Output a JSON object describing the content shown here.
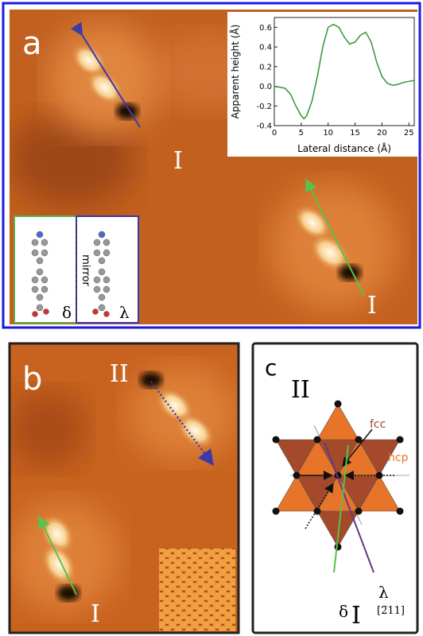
{
  "panels": {
    "a": {
      "label": "a",
      "molecule_labels": [
        "I",
        "I"
      ],
      "mirror_inset": {
        "text": "mirror",
        "left": "δ",
        "right": "λ"
      }
    },
    "b": {
      "label": "b",
      "molecule_labels": [
        "II",
        "I"
      ]
    },
    "c": {
      "label": "c",
      "site_labels": [
        "fcc",
        "hcp"
      ],
      "molecule_labels": [
        "II",
        "I"
      ],
      "chirality": [
        "λ",
        "δ"
      ],
      "direction": "[2̅11]"
    }
  },
  "chart_data": {
    "type": "line",
    "x_label": "Lateral distance (Å)",
    "y_label": "Apparent height (Å)",
    "x": [
      0,
      2,
      3,
      4,
      5,
      5.5,
      6,
      7,
      8,
      9,
      10,
      11,
      12,
      13,
      14,
      15,
      16,
      17,
      18,
      19,
      20,
      21,
      22,
      23,
      24,
      25,
      26
    ],
    "series": [
      {
        "color": "#3f9a3f",
        "values": [
          0,
          -0.02,
          -0.08,
          -0.2,
          -0.3,
          -0.33,
          -0.3,
          -0.15,
          0.1,
          0.4,
          0.6,
          0.63,
          0.6,
          0.5,
          0.43,
          0.45,
          0.52,
          0.55,
          0.45,
          0.25,
          0.1,
          0.03,
          0.01,
          0.02,
          0.04,
          0.05,
          0.06
        ]
      }
    ],
    "xlim": [
      0,
      26
    ],
    "ylim": [
      -0.4,
      0.7
    ],
    "xticks": [
      0,
      5,
      10,
      15,
      20,
      25
    ],
    "yticks": [
      -0.4,
      -0.2,
      {
        "value": 0,
        "label": "0.0"
      },
      0.2,
      0.4,
      0.6
    ]
  }
}
